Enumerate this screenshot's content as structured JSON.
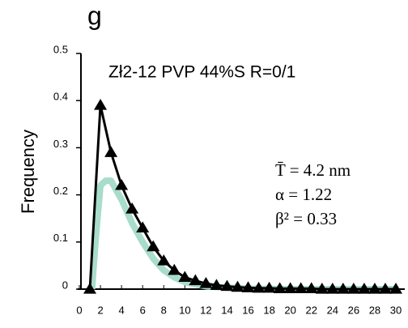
{
  "chart_data": {
    "type": "line",
    "panel_label": "g",
    "title": "Zł2-12 PVP   44%S R=0/1",
    "ylabel": "Frequency",
    "annotations": [
      "T̄ = 4.2 nm",
      "α = 1.22",
      "β² = 0.33"
    ],
    "xlim": [
      0,
      30
    ],
    "xticks": [
      0,
      2,
      4,
      6,
      8,
      10,
      12,
      14,
      16,
      18,
      20,
      22,
      24,
      26,
      28,
      30
    ],
    "ylim": [
      0,
      0.5
    ],
    "yticks": [
      0,
      0.1,
      0.2,
      0.3,
      0.4,
      0.5
    ],
    "series": [
      {
        "color": "#a8dccb",
        "marker": "none",
        "x": [
          1.2,
          1.6,
          2,
          2.5,
          3,
          4,
          5,
          6,
          7,
          8,
          9,
          10,
          12,
          14,
          16,
          20,
          30
        ],
        "values": [
          0,
          0.12,
          0.22,
          0.23,
          0.23,
          0.19,
          0.14,
          0.1,
          0.065,
          0.04,
          0.025,
          0.015,
          0.006,
          0.003,
          0.001,
          0,
          0
        ]
      },
      {
        "color": "#000000",
        "marker": "triangle",
        "x": [
          1,
          2,
          3,
          4,
          5,
          6,
          7,
          8,
          9,
          10,
          11,
          12,
          13,
          14,
          15,
          16,
          17,
          18,
          19,
          20,
          21,
          22,
          23,
          24,
          25,
          26,
          27,
          28,
          29,
          30
        ],
        "values": [
          0,
          0.39,
          0.29,
          0.22,
          0.17,
          0.13,
          0.09,
          0.06,
          0.04,
          0.025,
          0.018,
          0.012,
          0.008,
          0.006,
          0.004,
          0.003,
          0.002,
          0.002,
          0.001,
          0.001,
          0.001,
          0.001,
          0,
          0,
          0,
          0,
          0,
          0,
          0,
          0
        ]
      }
    ]
  }
}
